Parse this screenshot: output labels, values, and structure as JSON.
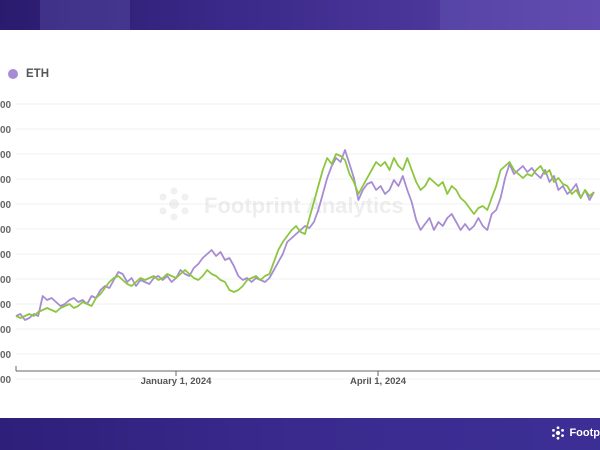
{
  "legend": {
    "label": "ETH",
    "color": "#a78bd4"
  },
  "watermark": "Footprint Analytics",
  "footer_brand": "Footp",
  "colors": {
    "eth": "#a78bd4",
    "second": "#8cc63f",
    "axis_text": "#555555",
    "grid": "#eeeeee"
  },
  "chart_data": {
    "type": "line",
    "x_tick_labels": [
      "January 1, 2024",
      "April 1, 2024"
    ],
    "y_tick_labels": [
      "00",
      "00",
      "00",
      "00",
      "00",
      "00",
      "00",
      "00",
      "00",
      "00",
      "00",
      "00"
    ],
    "series": [
      {
        "name": "ETH",
        "color": "#a78bd4",
        "values": [
          0.07,
          0.08,
          0.05,
          0.06,
          0.08,
          0.07,
          0.17,
          0.15,
          0.16,
          0.14,
          0.12,
          0.13,
          0.15,
          0.16,
          0.14,
          0.15,
          0.13,
          0.17,
          0.16,
          0.2,
          0.22,
          0.21,
          0.25,
          0.29,
          0.28,
          0.24,
          0.26,
          0.22,
          0.25,
          0.24,
          0.23,
          0.26,
          0.27,
          0.25,
          0.27,
          0.24,
          0.26,
          0.3,
          0.28,
          0.27,
          0.31,
          0.33,
          0.36,
          0.38,
          0.4,
          0.37,
          0.39,
          0.35,
          0.36,
          0.32,
          0.27,
          0.25,
          0.26,
          0.24,
          0.26,
          0.25,
          0.24,
          0.26,
          0.3,
          0.34,
          0.38,
          0.44,
          0.46,
          0.48,
          0.5,
          0.52,
          0.51,
          0.54,
          0.6,
          0.68,
          0.76,
          0.82,
          0.86,
          0.84,
          0.9,
          0.83,
          0.76,
          0.65,
          0.7,
          0.73,
          0.74,
          0.7,
          0.72,
          0.68,
          0.7,
          0.75,
          0.72,
          0.77,
          0.7,
          0.64,
          0.55,
          0.5,
          0.53,
          0.56,
          0.5,
          0.54,
          0.52,
          0.56,
          0.58,
          0.54,
          0.5,
          0.53,
          0.5,
          0.52,
          0.56,
          0.52,
          0.5,
          0.58,
          0.6,
          0.66,
          0.76,
          0.83,
          0.78,
          0.8,
          0.82,
          0.79,
          0.81,
          0.78,
          0.76,
          0.8,
          0.74,
          0.77,
          0.7,
          0.72,
          0.68,
          0.7,
          0.73,
          0.66,
          0.7,
          0.65,
          0.69
        ]
      },
      {
        "name": "",
        "color": "#8cc63f",
        "values": [
          0.07,
          0.06,
          0.07,
          0.08,
          0.07,
          0.09,
          0.1,
          0.11,
          0.1,
          0.09,
          0.11,
          0.12,
          0.13,
          0.11,
          0.12,
          0.14,
          0.13,
          0.12,
          0.16,
          0.18,
          0.21,
          0.24,
          0.26,
          0.27,
          0.25,
          0.23,
          0.22,
          0.24,
          0.26,
          0.25,
          0.26,
          0.27,
          0.25,
          0.26,
          0.28,
          0.27,
          0.26,
          0.28,
          0.3,
          0.28,
          0.26,
          0.25,
          0.27,
          0.3,
          0.28,
          0.27,
          0.25,
          0.24,
          0.2,
          0.19,
          0.2,
          0.22,
          0.25,
          0.26,
          0.27,
          0.25,
          0.27,
          0.28,
          0.34,
          0.4,
          0.44,
          0.47,
          0.5,
          0.52,
          0.49,
          0.48,
          0.56,
          0.64,
          0.72,
          0.8,
          0.86,
          0.83,
          0.88,
          0.87,
          0.85,
          0.78,
          0.74,
          0.68,
          0.72,
          0.76,
          0.8,
          0.84,
          0.82,
          0.84,
          0.8,
          0.86,
          0.82,
          0.8,
          0.86,
          0.8,
          0.74,
          0.7,
          0.72,
          0.76,
          0.74,
          0.72,
          0.74,
          0.68,
          0.72,
          0.7,
          0.66,
          0.64,
          0.61,
          0.58,
          0.61,
          0.62,
          0.6,
          0.66,
          0.72,
          0.8,
          0.82,
          0.84,
          0.8,
          0.78,
          0.76,
          0.78,
          0.77,
          0.8,
          0.82,
          0.78,
          0.8,
          0.74,
          0.76,
          0.73,
          0.72,
          0.68,
          0.7,
          0.66,
          0.7,
          0.67,
          0.69
        ]
      }
    ]
  }
}
